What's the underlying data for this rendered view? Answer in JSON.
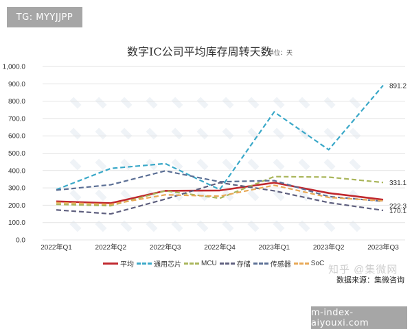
{
  "badges": {
    "top": "TG: MYYJJPP",
    "bottom": "m-index-aiyouxi.com"
  },
  "header": {
    "title": "数字IC公司平均库存周转天数",
    "unit": "单位：天"
  },
  "footer": {
    "watermark": "知乎 @集微网",
    "source": "数据来源：集微咨询"
  },
  "chart_data": {
    "type": "line",
    "title": "数字IC公司平均库存周转天数",
    "subtitle": "单位：天",
    "xlabel": "",
    "ylabel": "",
    "ylim": [
      0,
      1000
    ],
    "yticks": [
      "0.0",
      "100.0",
      "200.0",
      "300.0",
      "400.0",
      "500.0",
      "600.0",
      "700.0",
      "800.0",
      "900.0",
      "1,000.0"
    ],
    "grid": true,
    "legend_position": "bottom",
    "categories": [
      "2022年Q1",
      "2022年Q2",
      "2022年Q3",
      "2022年Q4",
      "2023年Q1",
      "2023年Q2",
      "2023年Q3"
    ],
    "series": [
      {
        "name": "平均",
        "color": "#c0272d",
        "dash": "solid",
        "values": [
          222,
          212,
          283,
          285,
          330,
          270,
          232
        ]
      },
      {
        "name": "通用芯片",
        "color": "#3aa8c8",
        "dash": "dashed",
        "values": [
          290,
          412,
          440,
          290,
          738,
          520,
          891.2
        ]
      },
      {
        "name": "MCU",
        "color": "#a9b55a",
        "dash": "dashed",
        "values": [
          205,
          197,
          283,
          240,
          365,
          362,
          331.1
        ]
      },
      {
        "name": "存储",
        "color": "#5e5f7e",
        "dash": "dashed",
        "values": [
          173,
          150,
          235,
          330,
          283,
          215,
          170.1
        ]
      },
      {
        "name": "传感器",
        "color": "#5b6f95",
        "dash": "dashed",
        "values": [
          287,
          318,
          398,
          335,
          342,
          250,
          222.3
        ]
      },
      {
        "name": "SoC",
        "color": "#e8a855",
        "dash": "dashed",
        "values": [
          215,
          205,
          260,
          252,
          315,
          245,
          225
        ]
      }
    ],
    "annotations": [
      {
        "text": "891.2",
        "series": "通用芯片",
        "x": "2023年Q3"
      },
      {
        "text": "331.1",
        "series": "MCU",
        "x": "2023年Q3"
      },
      {
        "text": "222.3",
        "series": "平均/传感器",
        "x": "2023年Q3"
      },
      {
        "text": "170.1",
        "series": "存储",
        "x": "2023年Q3"
      }
    ]
  }
}
